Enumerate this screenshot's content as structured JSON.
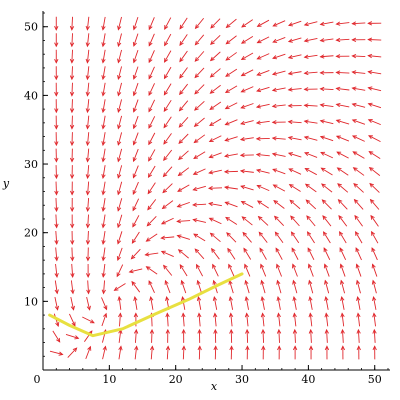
{
  "chart_data": {
    "type": "direction_field",
    "title": "",
    "xlabel": "x",
    "ylabel": "y",
    "xlim": [
      0,
      52
    ],
    "ylim": [
      0,
      52
    ],
    "x_ticks": [
      0,
      10,
      20,
      30,
      40,
      50
    ],
    "y_ticks": [
      10,
      20,
      30,
      40,
      50
    ],
    "grid": false,
    "field_color": "#e0262b",
    "field": {
      "x_start": 2,
      "x_step": 2.4,
      "x_count": 21,
      "y_start": 2.5,
      "y_step": 2.4,
      "y_count": 21,
      "dx_expression": "-x*y/50 + 2",
      "dy_expression": "x - y"
    },
    "series": [
      {
        "color": "#e8e040",
        "points": [
          [
            1,
            8
          ],
          [
            4,
            6.5
          ],
          [
            7.5,
            5
          ],
          [
            12,
            6
          ],
          [
            17,
            8.2
          ],
          [
            22,
            10.3
          ],
          [
            26,
            12.2
          ],
          [
            30,
            14
          ]
        ]
      }
    ]
  }
}
